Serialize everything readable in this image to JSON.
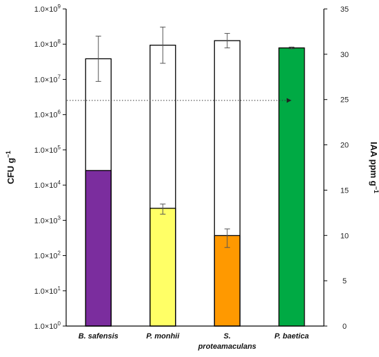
{
  "chart_data": {
    "type": "bar",
    "categories": [
      "B. safensis",
      "P. monhii",
      "S. proteamaculans",
      "P. baetica"
    ],
    "category_lines": [
      [
        "B. safensis"
      ],
      [
        "P. monhii"
      ],
      [
        "S.",
        "proteamaculans"
      ],
      [
        "P. baetica"
      ]
    ],
    "left_axis": {
      "label": "CFU g",
      "label_sup": "−1",
      "scale": "log",
      "ylim": [
        1,
        1000000000
      ],
      "tick_mantissa": "1.0×10",
      "tick_exponents": [
        "0",
        "1",
        "2",
        "3",
        "4",
        "5",
        "6",
        "7",
        "8",
        "9"
      ]
    },
    "right_axis": {
      "label": "IAA ppm g",
      "label_sup": "−1",
      "scale": "linear",
      "ylim": [
        0,
        35
      ],
      "ticks": [
        "0",
        "5",
        "10",
        "15",
        "20",
        "25",
        "30",
        "35"
      ]
    },
    "series": [
      {
        "axis": "left",
        "style": "filled",
        "values": [
          26000,
          2200,
          370,
          null
        ],
        "errors": [
          0,
          700,
          200,
          null
        ]
      },
      {
        "axis": "right",
        "style": "outline",
        "values": [
          29.5,
          31.0,
          31.5,
          30.7
        ],
        "errors": [
          2.5,
          2.0,
          0.8,
          0.1
        ]
      }
    ],
    "fill_colors": [
      "#7b2d9e",
      "#ffff66",
      "#ff9900",
      "#00aa44"
    ],
    "reference_line": {
      "axis": "right",
      "value": 24.9,
      "style": "dotted",
      "arrow": true
    },
    "grid": false,
    "legend": "none"
  }
}
